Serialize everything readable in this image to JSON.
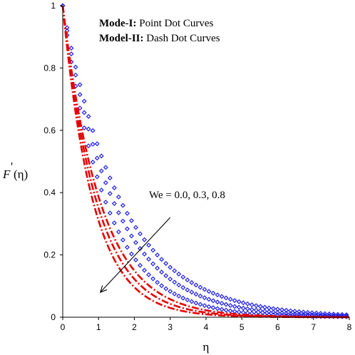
{
  "chart_data": {
    "type": "line",
    "title": "",
    "xlabel": "η",
    "ylabel_main": "F",
    "ylabel_prime": "'",
    "ylabel_arg": "(η)",
    "xlim": [
      0,
      8
    ],
    "ylim": [
      0,
      1
    ],
    "x_ticks": [
      "0",
      "1",
      "2",
      "3",
      "4",
      "5",
      "6",
      "7",
      "8"
    ],
    "y_ticks": [
      "0",
      "0.2",
      "0.4",
      "0.6",
      "0.8",
      "1"
    ],
    "grid": false,
    "legend": {
      "position": "top-center",
      "entries": [
        {
          "bold": "Mode-I:",
          "text": " Point Dot Curves"
        },
        {
          "bold": "Model-II:",
          "text": " Dash Dot Curves"
        }
      ]
    },
    "annotation": {
      "text": "We = 0.0, 0.3, 0.8",
      "arrow_from": [
        3.0,
        0.32
      ],
      "arrow_to": [
        1.05,
        0.08
      ]
    },
    "series": [
      {
        "model": "Mode-I",
        "style": "point-dot",
        "color": "#1e1ee6",
        "We": "0.0",
        "decay": 0.61,
        "x_step": 0.12
      },
      {
        "model": "Mode-I",
        "style": "point-dot",
        "color": "#1e1ee6",
        "We": "0.3",
        "decay": 0.7,
        "x_step": 0.12
      },
      {
        "model": "Mode-I",
        "style": "point-dot",
        "color": "#1e1ee6",
        "We": "0.8",
        "decay": 0.83,
        "x_step": 0.12
      },
      {
        "model": "Model-II",
        "style": "dash-dot",
        "color": "#e60000",
        "We": "0.0",
        "decay": 0.95
      },
      {
        "model": "Model-II",
        "style": "dash-dot",
        "color": "#e60000",
        "We": "0.3",
        "decay": 1.05
      },
      {
        "model": "Model-II",
        "style": "dash-dot",
        "color": "#e60000",
        "We": "0.8",
        "decay": 1.17
      }
    ]
  }
}
